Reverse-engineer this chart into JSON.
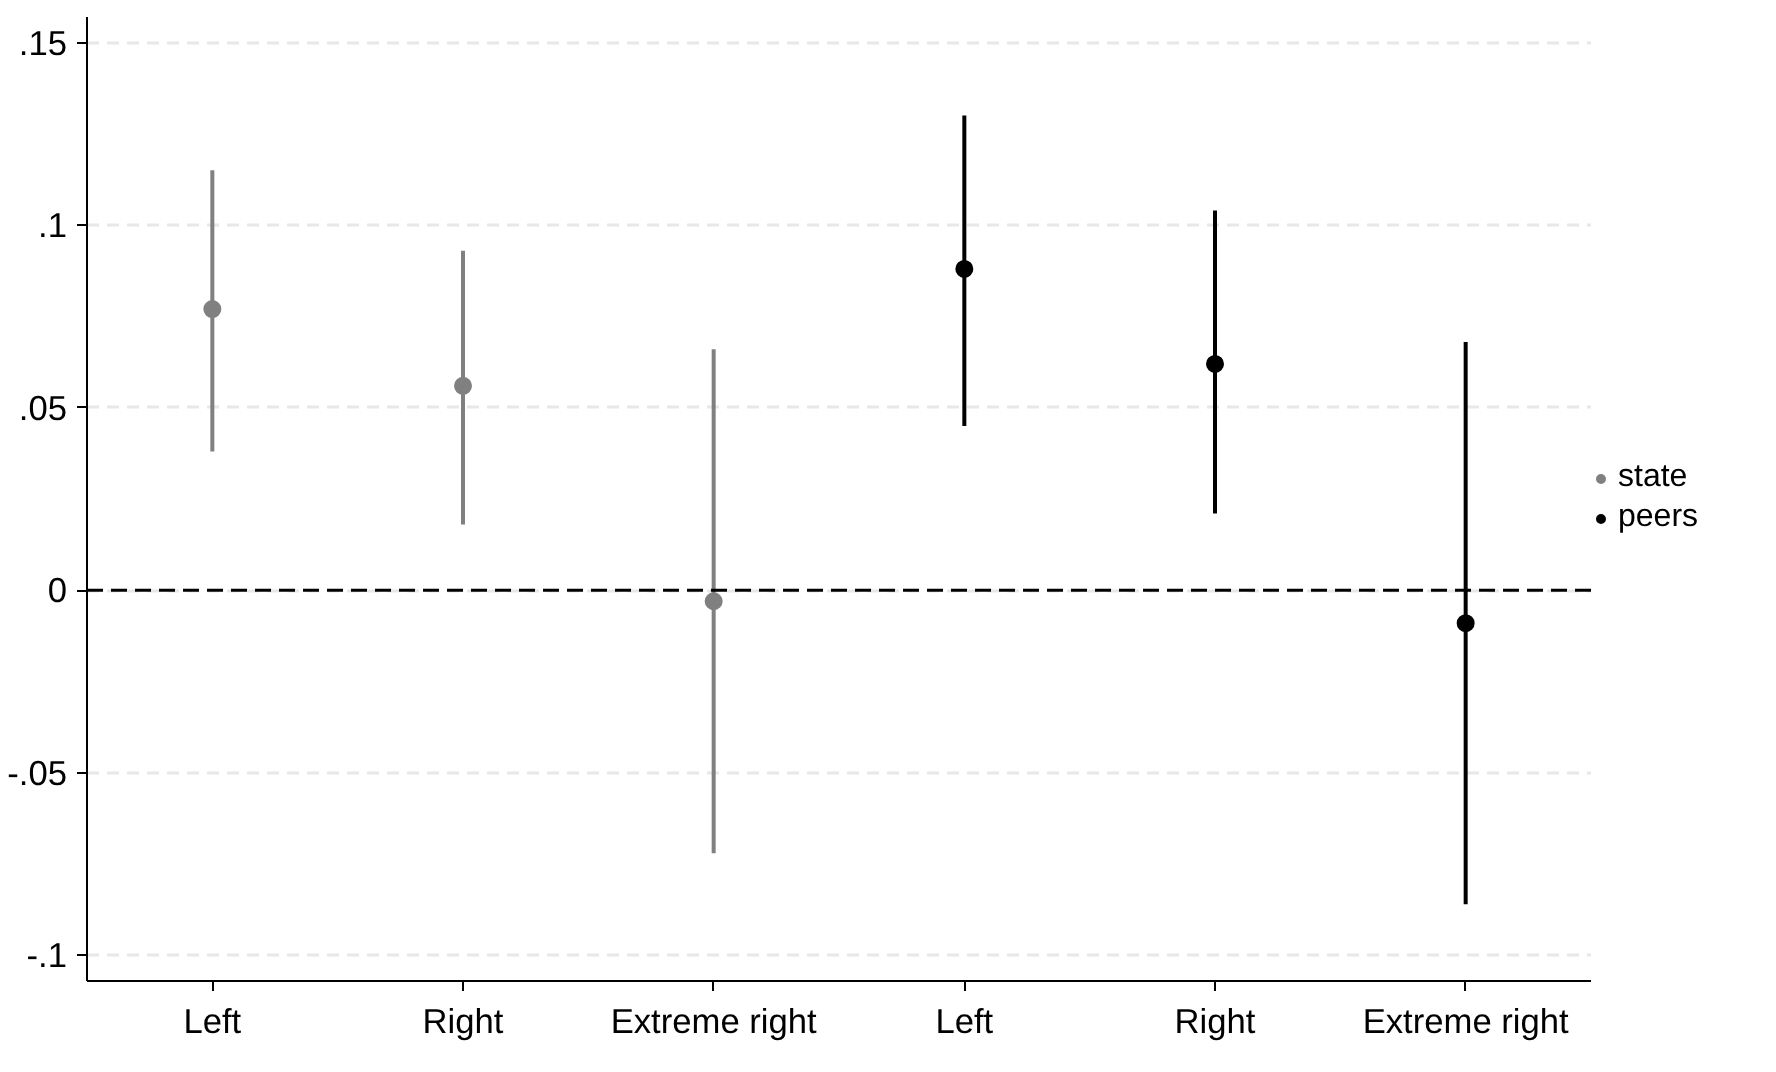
{
  "chart_data": {
    "type": "scatter",
    "categories": [
      "Left",
      "Right",
      "Extreme right",
      "Left",
      "Right",
      "Extreme right"
    ],
    "series": [
      {
        "name": "state",
        "color": "#808080",
        "values": [
          0.077,
          0.056,
          -0.003,
          null,
          null,
          null
        ],
        "errors": [
          [
            0.038,
            0.115
          ],
          [
            0.018,
            0.093
          ],
          [
            -0.072,
            0.066
          ],
          null,
          null,
          null
        ]
      },
      {
        "name": "peers",
        "color": "#000000",
        "values": [
          null,
          null,
          null,
          0.088,
          0.062,
          -0.009
        ],
        "errors": [
          null,
          null,
          null,
          [
            0.045,
            0.13
          ],
          [
            0.021,
            0.104
          ],
          [
            -0.086,
            0.068
          ]
        ]
      }
    ],
    "ylim": [
      -0.107,
      0.157
    ],
    "yticks": [
      {
        "value": -0.1,
        "label": "-.1"
      },
      {
        "value": -0.05,
        "label": "-.05"
      },
      {
        "value": 0,
        "label": "0"
      },
      {
        "value": 0.05,
        "label": ".05"
      },
      {
        "value": 0.1,
        "label": ".1"
      },
      {
        "value": 0.15,
        "label": ".15"
      }
    ],
    "ref_lines": [
      {
        "axis": "y",
        "value": 0,
        "color": "#000000",
        "line_style": "dashed"
      }
    ],
    "grid": "y",
    "legend": "right",
    "marker": "circle"
  }
}
